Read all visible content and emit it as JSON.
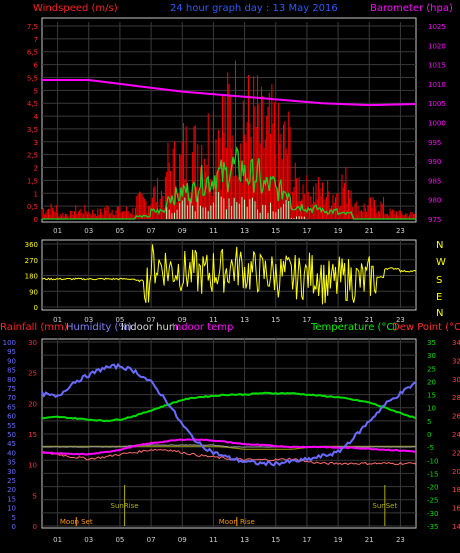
{
  "colors": {
    "bg": "#000000",
    "frame": "#c8c8c8",
    "grid": "#3a3a3a",
    "wind": "#ff2020",
    "gust": "#ff0000",
    "avg_wind": "#22cc22",
    "speed_light": "#ccffcc",
    "barometer": "#ff00ff",
    "direction": "#ffff00",
    "rain": "#ff2a2a",
    "humidity": "#6a6aff",
    "indoor_hum": "#cccccc",
    "indoor_temp": "#ff66ff",
    "temperature": "#00dd00",
    "dewpoint": "#ff4040",
    "temp_indoor": "#ff00ff",
    "dew_line": "#ff6a6a",
    "rain_line": "#8a8a00",
    "sun": "#b0b000",
    "moon": "#ff9900"
  },
  "chart_data": [
    {
      "type": "bar",
      "name": "wind-panel",
      "title": "24 hour graph day : 13 May 2016",
      "left_axis_label": "Windspeed (m/s)",
      "right_axis_label": "Barometer (hpa)",
      "left_ticks": [
        "0",
        "0,5",
        "1",
        "1,5",
        "2",
        "2,5",
        "3",
        "3,5",
        "4",
        "4,5",
        "5",
        "5,5",
        "6",
        "6,5",
        "7",
        "7,5"
      ],
      "right_ticks": [
        "975",
        "980",
        "985",
        "990",
        "995",
        "1000",
        "1005",
        "1010",
        "1015",
        "1020",
        "1025"
      ],
      "left_range": [
        0,
        7.5
      ],
      "right_range": [
        975,
        1025
      ],
      "x_ticks": [
        "01",
        "03",
        "05",
        "07",
        "09",
        "11",
        "13",
        "15",
        "17",
        "19",
        "21",
        "23"
      ],
      "x_hours": [
        1,
        3,
        5,
        7,
        9,
        11,
        13,
        15,
        17,
        19,
        21,
        23
      ],
      "gust_hourly": [
        0.6,
        0.3,
        0.5,
        0.4,
        0.6,
        0.5,
        1.0,
        1.5,
        3.0,
        3.8,
        4.5,
        5.5,
        6.2,
        5.5,
        4.8,
        4.2,
        2.0,
        1.6,
        1.5,
        2.0,
        0.7,
        0.8,
        0.4,
        0.3
      ],
      "avg_hourly": [
        0.0,
        0.0,
        0.0,
        0.0,
        0.0,
        0.0,
        0.1,
        0.3,
        0.9,
        1.1,
        1.5,
        1.7,
        2.0,
        1.7,
        1.3,
        1.1,
        0.5,
        0.4,
        0.3,
        0.2,
        0.0,
        0.0,
        0.0,
        0.0
      ],
      "light_hourly": [
        0,
        0,
        0,
        0,
        0,
        0,
        0,
        0,
        0.6,
        0.8,
        0.9,
        1.1,
        1.2,
        1.0,
        0.8,
        0.7,
        0.1,
        0,
        0,
        0,
        0,
        0,
        0,
        0
      ],
      "barometer_x": [
        0,
        3,
        6,
        9,
        12,
        15,
        18,
        21,
        24
      ],
      "barometer_y": [
        1011,
        1011,
        1009.5,
        1008,
        1007,
        1006,
        1005,
        1004.5,
        1004.8
      ]
    },
    {
      "type": "line",
      "name": "direction-panel",
      "left_ticks": [
        "0",
        "90",
        "180",
        "270",
        "360"
      ],
      "left_range": [
        0,
        360
      ],
      "compass_labels": [
        "N",
        "W",
        "S",
        "E",
        "N"
      ],
      "x_hours": [
        1,
        3,
        5,
        7,
        9,
        11,
        13,
        15,
        17,
        19,
        21,
        23
      ],
      "x_ticks": [
        "01",
        "03",
        "05",
        "07",
        "09",
        "11",
        "13",
        "15",
        "17",
        "19",
        "21",
        "23"
      ],
      "dir_hourly": [
        160,
        160,
        160,
        160,
        160,
        160,
        150,
        240,
        215,
        200,
        190,
        210,
        230,
        200,
        190,
        180,
        170,
        190,
        140,
        160,
        150,
        170,
        220,
        205
      ]
    },
    {
      "type": "line",
      "name": "temp-panel",
      "left_labels": [
        "Rainfall (mm)",
        "Humidity (%)",
        "Indoor hum",
        "Indoor temp"
      ],
      "right_labels": [
        "Temperature (°C)",
        "Dew Point (°C)"
      ],
      "humidity_ticks": [
        "0",
        "5",
        "10",
        "15",
        "20",
        "25",
        "30",
        "35",
        "40",
        "45",
        "50",
        "55",
        "60",
        "65",
        "70",
        "75",
        "80",
        "85",
        "90",
        "95",
        "100"
      ],
      "rain_ticks": [
        "0",
        "5",
        "10",
        "15",
        "20",
        "25",
        "30"
      ],
      "temp_ticks": [
        "-35",
        "-30",
        "-25",
        "-20",
        "-15",
        "-10",
        "-5",
        "0",
        "5",
        "10",
        "15",
        "20",
        "25",
        "30",
        "35"
      ],
      "dew_ticks": [
        "14",
        "16",
        "18",
        "20",
        "22",
        "24",
        "26",
        "28",
        "30",
        "32",
        "34"
      ],
      "x_ticks": [
        "01",
        "03",
        "05",
        "07",
        "09",
        "11",
        "13",
        "15",
        "17",
        "19",
        "21",
        "23"
      ],
      "x_hours": [
        1,
        3,
        5,
        7,
        9,
        11,
        13,
        15,
        17,
        19,
        21,
        23
      ],
      "series_x": [
        0,
        1,
        2,
        3,
        4,
        5,
        6,
        7,
        8,
        9,
        10,
        11,
        12,
        13,
        14,
        15,
        16,
        17,
        18,
        19,
        20,
        21,
        22,
        23,
        24
      ],
      "humidity": [
        72,
        70,
        78,
        82,
        86,
        87,
        84,
        78,
        68,
        55,
        45,
        40,
        37,
        35,
        34,
        34,
        35,
        36,
        38,
        40,
        48,
        57,
        66,
        72,
        78
      ],
      "temperature": [
        6.0,
        6.5,
        6.0,
        5.5,
        5.0,
        5.5,
        7.0,
        9.0,
        11.0,
        13.0,
        14.0,
        14.5,
        15.0,
        15.0,
        15.5,
        15.5,
        15.5,
        15.0,
        14.5,
        14.0,
        13.0,
        12.0,
        10.0,
        8.0,
        6.0
      ],
      "indoor_temp": [
        22.0,
        21.9,
        21.8,
        21.8,
        22.0,
        22.3,
        22.7,
        23.0,
        23.2,
        23.4,
        23.4,
        23.3,
        23.1,
        22.9,
        22.8,
        22.7,
        22.6,
        22.6,
        22.6,
        22.5,
        22.5,
        22.4,
        22.3,
        22.2,
        22.1
      ],
      "dew_point": [
        22.0,
        21.8,
        21.5,
        21.3,
        21.5,
        21.8,
        22.0,
        22.3,
        22.3,
        22.0,
        21.7,
        21.5,
        21.3,
        21.2,
        21.2,
        21.2,
        21.3,
        21.0,
        20.8,
        20.8,
        20.8,
        20.8,
        20.8,
        20.8,
        20.8
      ],
      "indoor_hum": [
        43,
        43,
        43,
        43,
        43,
        43,
        44,
        44,
        44,
        44,
        44,
        44,
        43,
        43,
        43,
        43,
        43,
        43,
        43,
        43,
        43,
        43,
        43,
        43,
        43
      ],
      "rain_line": [
        13,
        13,
        13,
        13,
        13,
        13,
        13,
        13,
        13,
        13,
        13,
        13,
        12.8,
        12.5,
        12.5,
        12.5,
        12.5,
        12.8,
        13,
        13,
        13,
        13,
        13,
        13,
        13
      ],
      "events": [
        {
          "label": "SunRise",
          "hour": 5.3
        },
        {
          "label": "SunSet",
          "hour": 22.0
        },
        {
          "label": "Moon Set",
          "hour": 2.2
        },
        {
          "label": "Moon Rise",
          "hour": 12.5
        }
      ]
    }
  ]
}
